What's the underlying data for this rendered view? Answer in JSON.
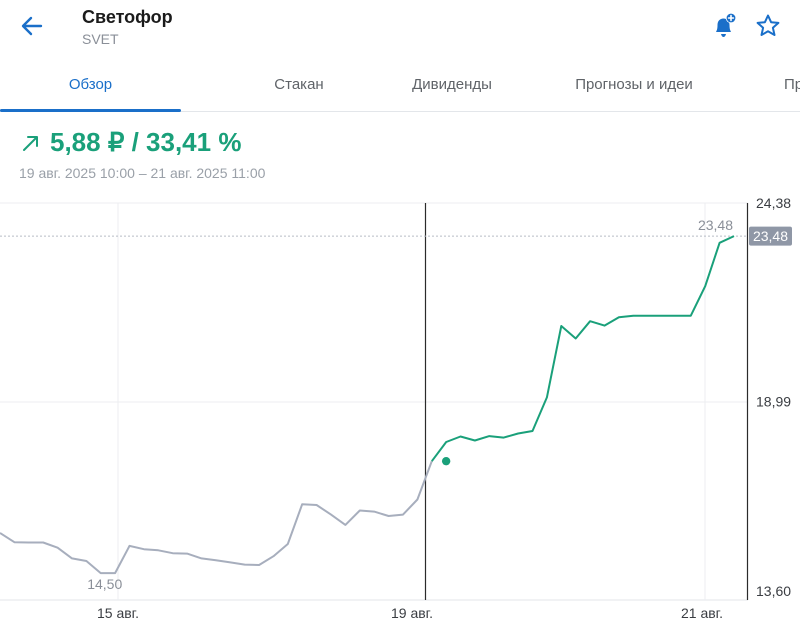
{
  "header": {
    "back_icon": "arrow-left-icon",
    "title": "Светофор",
    "ticker": "SVET",
    "bell_icon": "bell-plus-icon",
    "star_icon": "star-outline-icon"
  },
  "tabs": [
    {
      "label": "Обзор",
      "active": true
    },
    {
      "label": "Стакан",
      "active": false
    },
    {
      "label": "Дивиденды",
      "active": false
    },
    {
      "label": "Прогнозы и идеи",
      "active": false
    },
    {
      "label": "Пр",
      "active": false
    }
  ],
  "summary": {
    "trend_icon": "arrow-up-right-icon",
    "change_text": "5,88 ₽ / 33,41 %",
    "period": "19 авг. 2025 10:00 – 21 авг. 2025 11:00"
  },
  "colors": {
    "accent": "#1a6fc9",
    "positive": "#1aa07a",
    "history_line": "#a7aebd",
    "last_price_badge": "#8f97a6"
  },
  "chart_data": {
    "type": "line",
    "x_ticks": [
      "15 авг.",
      "19 авг.",
      "21 авг."
    ],
    "y_ticks": [
      "24,38",
      "18,99",
      "13,60"
    ],
    "y_tick_values": [
      24.38,
      18.99,
      13.6
    ],
    "ylim": [
      13.6,
      24.38
    ],
    "min_label": "14,50",
    "max_label": "23,48",
    "last_price_label": "23,48",
    "last_price": 23.48,
    "selected_index": 31,
    "grid": true,
    "series": [
      {
        "role": "history",
        "values": [
          15.42,
          15.17,
          15.16,
          15.16,
          15.02,
          14.73,
          14.66,
          14.33,
          14.33,
          15.07,
          14.98,
          14.95,
          14.87,
          14.86,
          14.73,
          14.68,
          14.62,
          14.56,
          14.55,
          14.79,
          15.12,
          16.2,
          16.18,
          15.92,
          15.64,
          16.03,
          16.0,
          15.88,
          15.92,
          16.33,
          17.37
        ]
      },
      {
        "role": "selected_period",
        "values": [
          17.37,
          17.89,
          18.04,
          17.93,
          18.05,
          18.01,
          18.12,
          18.19,
          19.1,
          21.04,
          20.7,
          21.17,
          21.05,
          21.28,
          21.32,
          21.32,
          21.32,
          21.32,
          21.32,
          22.12,
          23.3,
          23.48
        ]
      }
    ]
  }
}
